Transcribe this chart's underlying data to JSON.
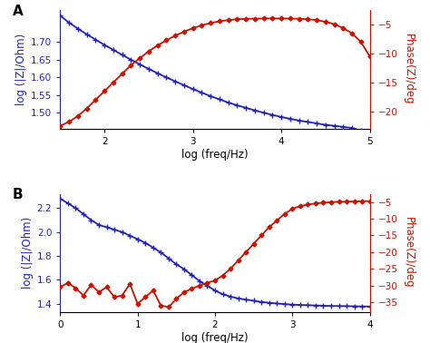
{
  "panel_A": {
    "label": "A",
    "blue_x": [
      1.5,
      1.6,
      1.7,
      1.8,
      1.9,
      2.0,
      2.1,
      2.2,
      2.3,
      2.4,
      2.5,
      2.6,
      2.7,
      2.8,
      2.9,
      3.0,
      3.1,
      3.2,
      3.3,
      3.4,
      3.5,
      3.6,
      3.7,
      3.8,
      3.9,
      4.0,
      4.1,
      4.2,
      4.3,
      4.4,
      4.5,
      4.6,
      4.7,
      4.8,
      4.9,
      5.0
    ],
    "blue_y": [
      1.775,
      1.755,
      1.738,
      1.722,
      1.707,
      1.692,
      1.678,
      1.664,
      1.65,
      1.637,
      1.624,
      1.612,
      1.6,
      1.589,
      1.578,
      1.567,
      1.557,
      1.547,
      1.538,
      1.529,
      1.521,
      1.514,
      1.507,
      1.5,
      1.494,
      1.488,
      1.483,
      1.478,
      1.474,
      1.47,
      1.466,
      1.463,
      1.46,
      1.457,
      1.45,
      1.44
    ],
    "red_x": [
      1.5,
      1.6,
      1.7,
      1.8,
      1.9,
      2.0,
      2.1,
      2.2,
      2.3,
      2.4,
      2.5,
      2.6,
      2.7,
      2.8,
      2.9,
      3.0,
      3.1,
      3.2,
      3.3,
      3.4,
      3.5,
      3.6,
      3.7,
      3.8,
      3.9,
      4.0,
      4.1,
      4.2,
      4.3,
      4.4,
      4.5,
      4.6,
      4.7,
      4.8,
      4.9,
      5.0
    ],
    "red_y": [
      -22.5,
      -21.8,
      -20.8,
      -19.5,
      -18.0,
      -16.5,
      -15.0,
      -13.5,
      -12.0,
      -10.8,
      -9.6,
      -8.6,
      -7.7,
      -6.9,
      -6.2,
      -5.6,
      -5.1,
      -4.7,
      -4.4,
      -4.2,
      -4.05,
      -3.98,
      -3.95,
      -3.93,
      -3.92,
      -3.92,
      -3.93,
      -3.97,
      -4.05,
      -4.2,
      -4.5,
      -4.9,
      -5.6,
      -6.5,
      -8.0,
      -10.5
    ],
    "xlim": [
      1.5,
      5.0
    ],
    "blue_ylim": [
      1.455,
      1.79
    ],
    "red_ylim": [
      -23,
      -2.5
    ],
    "blue_yticks": [
      1.5,
      1.55,
      1.6,
      1.65,
      1.7
    ],
    "red_yticks": [
      -20,
      -15,
      -10,
      -5
    ],
    "xticks": [
      2,
      3,
      4,
      5
    ],
    "xlabel": "log (freq/Hz)",
    "left_ylabel": "log (|Z|/Ohm)",
    "right_ylabel": "Phase(Z)/deg"
  },
  "panel_B": {
    "label": "B",
    "blue_x": [
      0.0,
      0.1,
      0.2,
      0.3,
      0.4,
      0.5,
      0.6,
      0.7,
      0.8,
      0.9,
      1.0,
      1.1,
      1.2,
      1.3,
      1.4,
      1.5,
      1.6,
      1.7,
      1.8,
      1.9,
      2.0,
      2.1,
      2.2,
      2.3,
      2.4,
      2.5,
      2.6,
      2.7,
      2.8,
      2.9,
      3.0,
      3.1,
      3.2,
      3.3,
      3.4,
      3.5,
      3.6,
      3.7,
      3.8,
      3.9,
      4.0
    ],
    "blue_y": [
      2.28,
      2.24,
      2.2,
      2.15,
      2.1,
      2.06,
      2.04,
      2.02,
      2.0,
      1.97,
      1.94,
      1.91,
      1.87,
      1.83,
      1.78,
      1.73,
      1.69,
      1.64,
      1.59,
      1.55,
      1.51,
      1.48,
      1.46,
      1.445,
      1.435,
      1.425,
      1.415,
      1.408,
      1.402,
      1.397,
      1.393,
      1.39,
      1.388,
      1.386,
      1.384,
      1.382,
      1.381,
      1.38,
      1.379,
      1.378,
      1.377
    ],
    "red_x": [
      0.0,
      0.1,
      0.2,
      0.3,
      0.4,
      0.5,
      0.6,
      0.7,
      0.8,
      0.9,
      1.0,
      1.1,
      1.2,
      1.3,
      1.4,
      1.5,
      1.6,
      1.7,
      1.8,
      1.9,
      2.0,
      2.1,
      2.2,
      2.3,
      2.4,
      2.5,
      2.6,
      2.7,
      2.8,
      2.9,
      3.0,
      3.1,
      3.2,
      3.3,
      3.4,
      3.5,
      3.6,
      3.7,
      3.8,
      3.9,
      4.0
    ],
    "red_y": [
      -30.5,
      -29.2,
      -30.8,
      -33.0,
      -29.8,
      -32.0,
      -30.5,
      -33.5,
      -33.0,
      -29.5,
      -35.5,
      -33.5,
      -31.5,
      -36.0,
      -36.5,
      -34.0,
      -32.0,
      -31.0,
      -30.0,
      -29.2,
      -28.5,
      -27.0,
      -25.0,
      -22.5,
      -20.0,
      -17.5,
      -15.0,
      -12.5,
      -10.5,
      -8.5,
      -7.0,
      -6.2,
      -5.7,
      -5.4,
      -5.2,
      -5.0,
      -4.9,
      -4.85,
      -4.8,
      -4.75,
      -4.7
    ],
    "xlim": [
      0.0,
      4.0
    ],
    "blue_ylim": [
      1.33,
      2.32
    ],
    "red_ylim": [
      -38,
      -2.5
    ],
    "blue_yticks": [
      1.4,
      1.6,
      1.8,
      2.0,
      2.2
    ],
    "red_yticks": [
      -35,
      -30,
      -25,
      -20,
      -15,
      -10,
      -5
    ],
    "xticks": [
      0,
      1,
      2,
      3,
      4
    ],
    "xlabel": "log (freq/Hz)",
    "left_ylabel": "log (|Z|/Ohm)",
    "right_ylabel": "Phase(Z)/deg"
  },
  "blue_color": "#2222bb",
  "red_color": "#cc1100",
  "bg_color": "#ffffff",
  "label_fontsize": 11,
  "axis_label_fontsize": 8.5,
  "tick_fontsize": 7.5,
  "blue_marker": "+",
  "red_marker": "D",
  "blue_markersize": 4,
  "red_markersize": 2.5,
  "linewidth": 1.3
}
